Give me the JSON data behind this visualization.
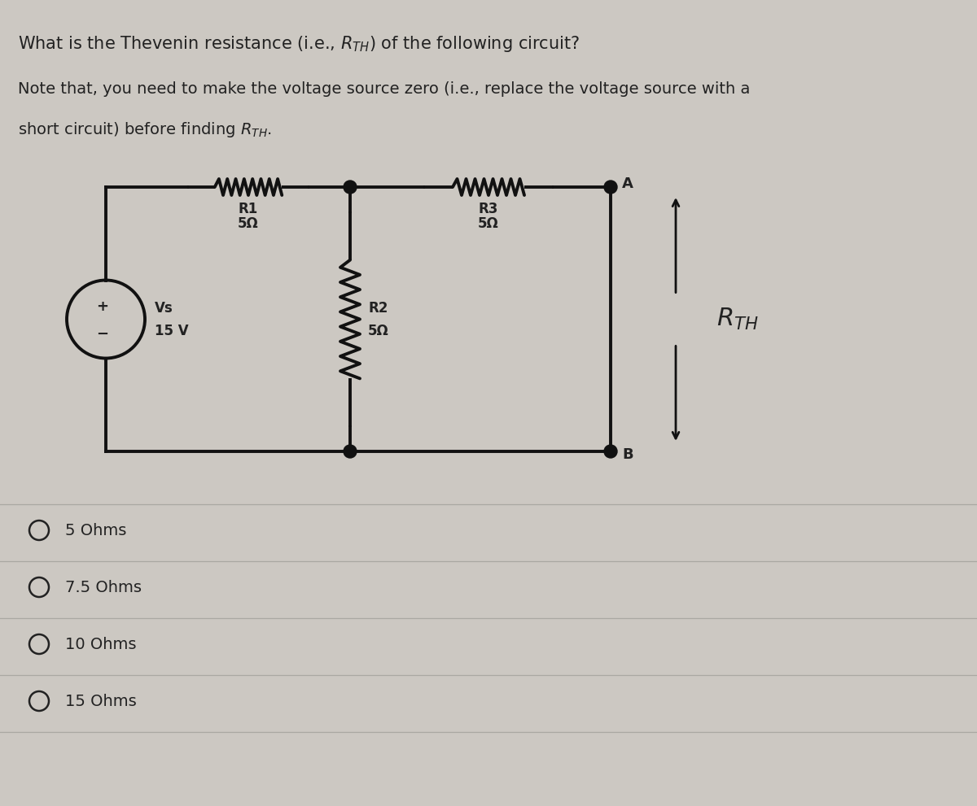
{
  "bg_color": "#ccc8c2",
  "title_line1": "What is the Thevenin resistance (i.e., $R_{TH}$) of the following circuit?",
  "note_line1": "Note that, you need to make the voltage source zero (i.e., replace the voltage source with a",
  "note_line2": "short circuit) before finding $R_{TH}$.",
  "options": [
    "5 Ohms",
    "7.5 Ohms",
    "10 Ohms",
    "15 Ohms"
  ],
  "vs_label": "Vs",
  "vs_value": "15 V",
  "r1_label": "R1",
  "r1_value": "5Ω",
  "r2_label": "R2",
  "r2_value": "5Ω",
  "r3_label": "R3",
  "r3_value": "5Ω",
  "rth_label": "$R_{TH}$",
  "text_color": "#222222",
  "line_color": "#111111",
  "divider_color": "#aaa8a2",
  "font_size_title": 15,
  "font_size_note": 14,
  "font_size_circuit": 12,
  "font_size_options": 14
}
